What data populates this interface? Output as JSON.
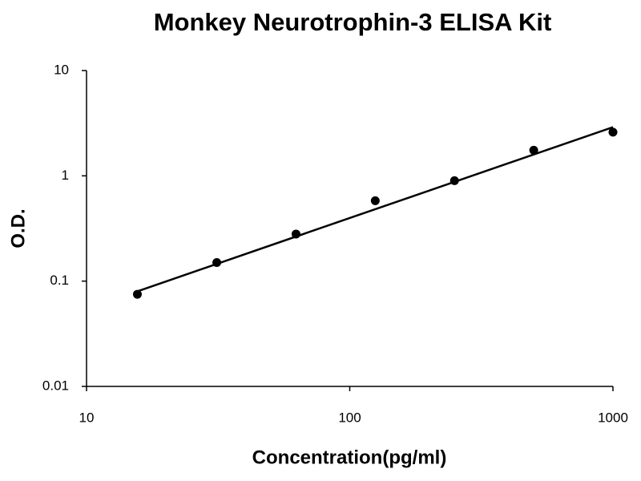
{
  "chart_data": {
    "type": "scatter",
    "title": "Monkey Neurotrophin-3 ELISA Kit",
    "x_label": "Concentration(pg/ml)",
    "y_label": "O.D.",
    "x": [
      15.6,
      31.25,
      62.5,
      125,
      250,
      500,
      1000
    ],
    "series": [
      {
        "color": "#000000",
        "values": [
          0.075,
          0.15,
          0.28,
          0.58,
          0.9,
          1.75,
          2.6
        ]
      }
    ],
    "trendline": {
      "color": "#000000",
      "x": [
        15.6,
        1000
      ],
      "values": [
        0.08,
        2.9
      ]
    },
    "x_scale": "log",
    "y_scale": "log",
    "xlim": [
      10,
      1000
    ],
    "ylim": [
      0.01,
      10
    ],
    "xticks": [
      10,
      100,
      1000
    ],
    "yticks": [
      0.01,
      0.1,
      1,
      10
    ],
    "grid": false
  }
}
